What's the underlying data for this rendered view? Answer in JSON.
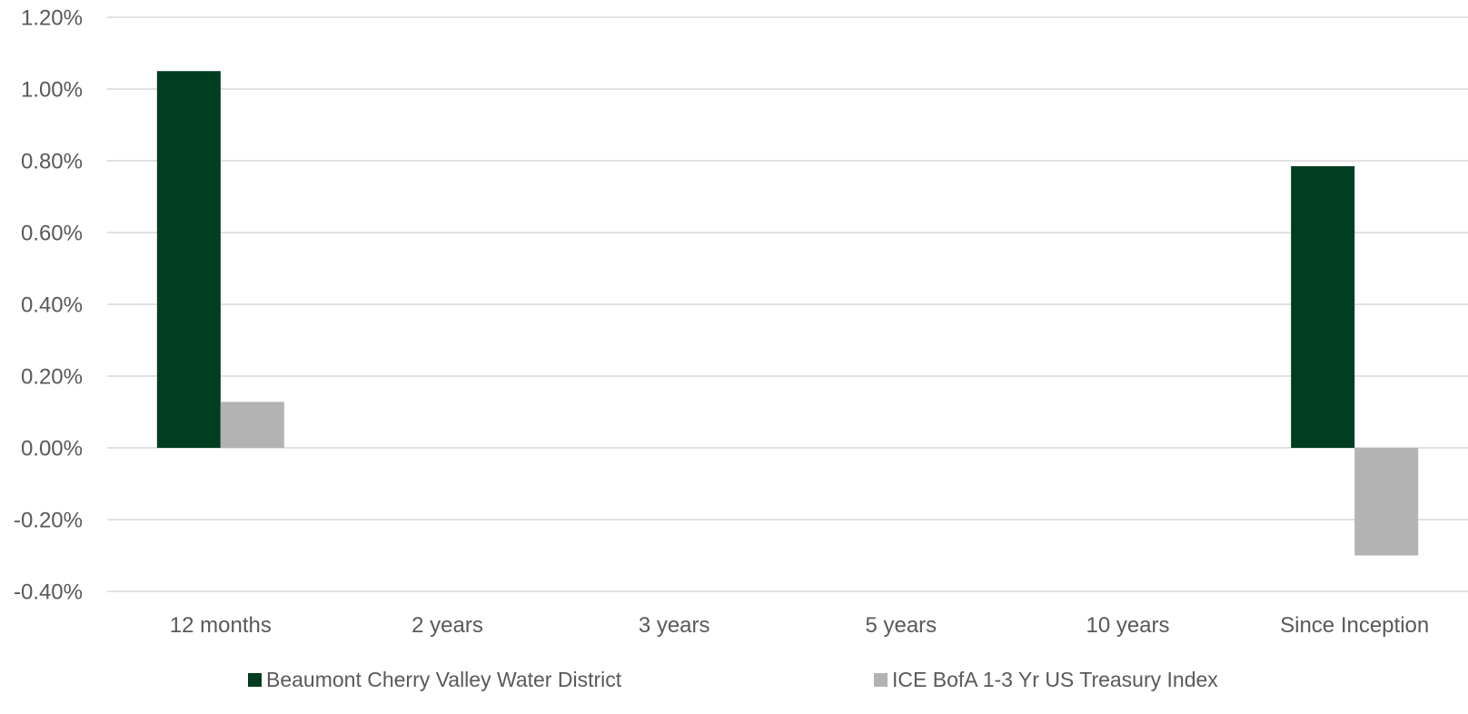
{
  "chart_data": {
    "type": "bar",
    "categories": [
      "12 months",
      "2 years",
      "3 years",
      "5 years",
      "10 years",
      "Since Inception"
    ],
    "series": [
      {
        "name": "Beaumont Cherry Valley Water District",
        "color": "#003d21",
        "values": [
          1.05,
          null,
          null,
          null,
          null,
          0.785
        ]
      },
      {
        "name": "ICE BofA 1-3 Yr US Treasury Index",
        "color": "#b3b3b3",
        "values": [
          0.128,
          null,
          null,
          null,
          null,
          -0.3
        ]
      }
    ],
    "ylim": [
      -0.4,
      1.2
    ],
    "yticks": [
      1.2,
      1.0,
      0.8,
      0.6,
      0.4,
      0.2,
      0.0,
      -0.2,
      -0.4
    ],
    "ytick_labels": [
      "1.20%",
      "1.00%",
      "0.80%",
      "0.60%",
      "0.40%",
      "0.20%",
      "0.00%",
      "-0.20%",
      "-0.40%"
    ],
    "grid": true,
    "legend_position": "bottom",
    "title": "",
    "xlabel": "",
    "ylabel": ""
  }
}
